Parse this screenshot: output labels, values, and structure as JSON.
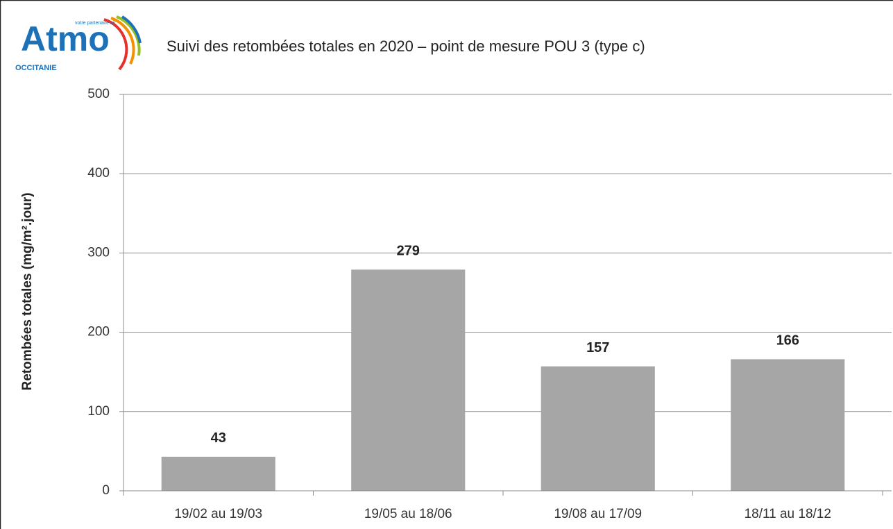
{
  "logo": {
    "name": "Atmo",
    "region": "OCCITANIE",
    "tagline": "votre partenaire air"
  },
  "chart_data": {
    "type": "bar",
    "title": "Suivi des retombées totales en 2020 – point de mesure POU 3 (type c)",
    "y_label": "Retombées totales (mg/m².jour)",
    "categories": [
      "19/02 au 19/03",
      "19/05 au 18/06",
      "19/08 au 17/09",
      "18/11 au 18/12"
    ],
    "values": [
      43,
      279,
      157,
      166
    ],
    "color": "#a6a6a6",
    "ylim": [
      0,
      500
    ],
    "yticks": [
      0,
      100,
      200,
      300,
      400,
      500
    ],
    "grid": true
  }
}
